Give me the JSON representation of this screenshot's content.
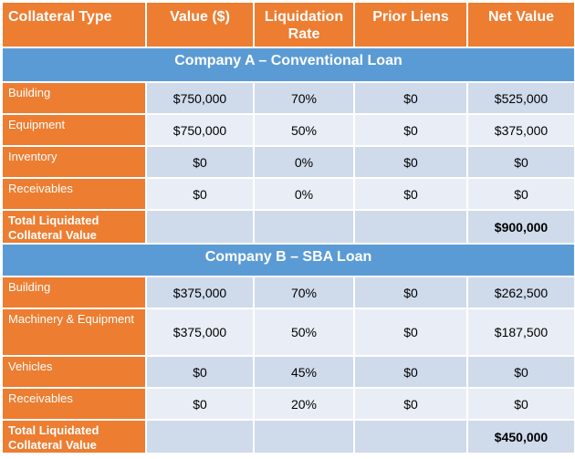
{
  "headers": [
    "Collateral Type",
    "Value ($)",
    "Liquidation Rate",
    "Prior Liens",
    "Net Value"
  ],
  "sections": [
    {
      "title": "Company A – Conventional Loan",
      "rows": [
        {
          "type": "Building",
          "value": "$750,000",
          "rate": "70%",
          "liens": "$0",
          "net": "$525,000"
        },
        {
          "type": "Equipment",
          "value": "$750,000",
          "rate": "50%",
          "liens": "$0",
          "net": "$375,000"
        },
        {
          "type": "Inventory",
          "value": "$0",
          "rate": "0%",
          "liens": "$0",
          "net": "$0"
        },
        {
          "type": "Receivables",
          "value": "$0",
          "rate": "0%",
          "liens": "$0",
          "net": "$0"
        }
      ],
      "total": {
        "label": "Total Liquidated Collateral Value",
        "net": "$900,000"
      }
    },
    {
      "title": "Company B – SBA Loan",
      "rows": [
        {
          "type": "Building",
          "value": "$375,000",
          "rate": "70%",
          "liens": "$0",
          "net": "$262,500"
        },
        {
          "type": "Machinery & Equipment",
          "value": "$375,000",
          "rate": "50%",
          "liens": "$0",
          "net": "$187,500"
        },
        {
          "type": "Vehicles",
          "value": "$0",
          "rate": "45%",
          "liens": "$0",
          "net": "$0"
        },
        {
          "type": "Receivables",
          "value": "$0",
          "rate": "20%",
          "liens": "$0",
          "net": "$0"
        }
      ],
      "total": {
        "label": "Total Liquidated Collateral Value",
        "net": "$450,000"
      }
    }
  ],
  "colors": {
    "header": "#ed7d31",
    "section": "#5b9bd5",
    "row_dark": "#cfdaeb",
    "row_light": "#e9eef6"
  }
}
